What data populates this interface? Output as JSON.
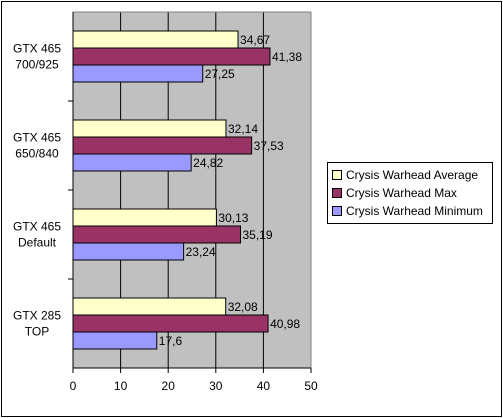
{
  "chart_data": {
    "type": "bar",
    "orientation": "horizontal",
    "categories": [
      [
        "GTX 465",
        "700/925"
      ],
      [
        "GTX 465",
        "650/840"
      ],
      [
        "GTX 465",
        "Default"
      ],
      [
        "GTX 285",
        "TOP"
      ]
    ],
    "series": [
      {
        "name": "Crysis Warhead Average",
        "color": "#FFFFCC",
        "values": [
          34.67,
          32.14,
          30.13,
          32.08
        ],
        "labels": [
          "34,67",
          "32,14",
          "30,13",
          "32,08"
        ]
      },
      {
        "name": "Crysis Warhead Max",
        "color": "#993366",
        "values": [
          41.38,
          37.53,
          35.19,
          40.98
        ],
        "labels": [
          "41,38",
          "37,53",
          "35,19",
          "40,98"
        ]
      },
      {
        "name": "Crysis Warhead Minimum",
        "color": "#9999FF",
        "values": [
          27.25,
          24.82,
          23.24,
          17.6
        ],
        "labels": [
          "27,25",
          "24,82",
          "23,24",
          "17,6"
        ]
      }
    ],
    "xlim": [
      0,
      50
    ],
    "xticks": [
      "0",
      "10",
      "20",
      "30",
      "40",
      "50"
    ],
    "plot_background": "#C0C0C0",
    "grid": true,
    "legend": "right"
  }
}
